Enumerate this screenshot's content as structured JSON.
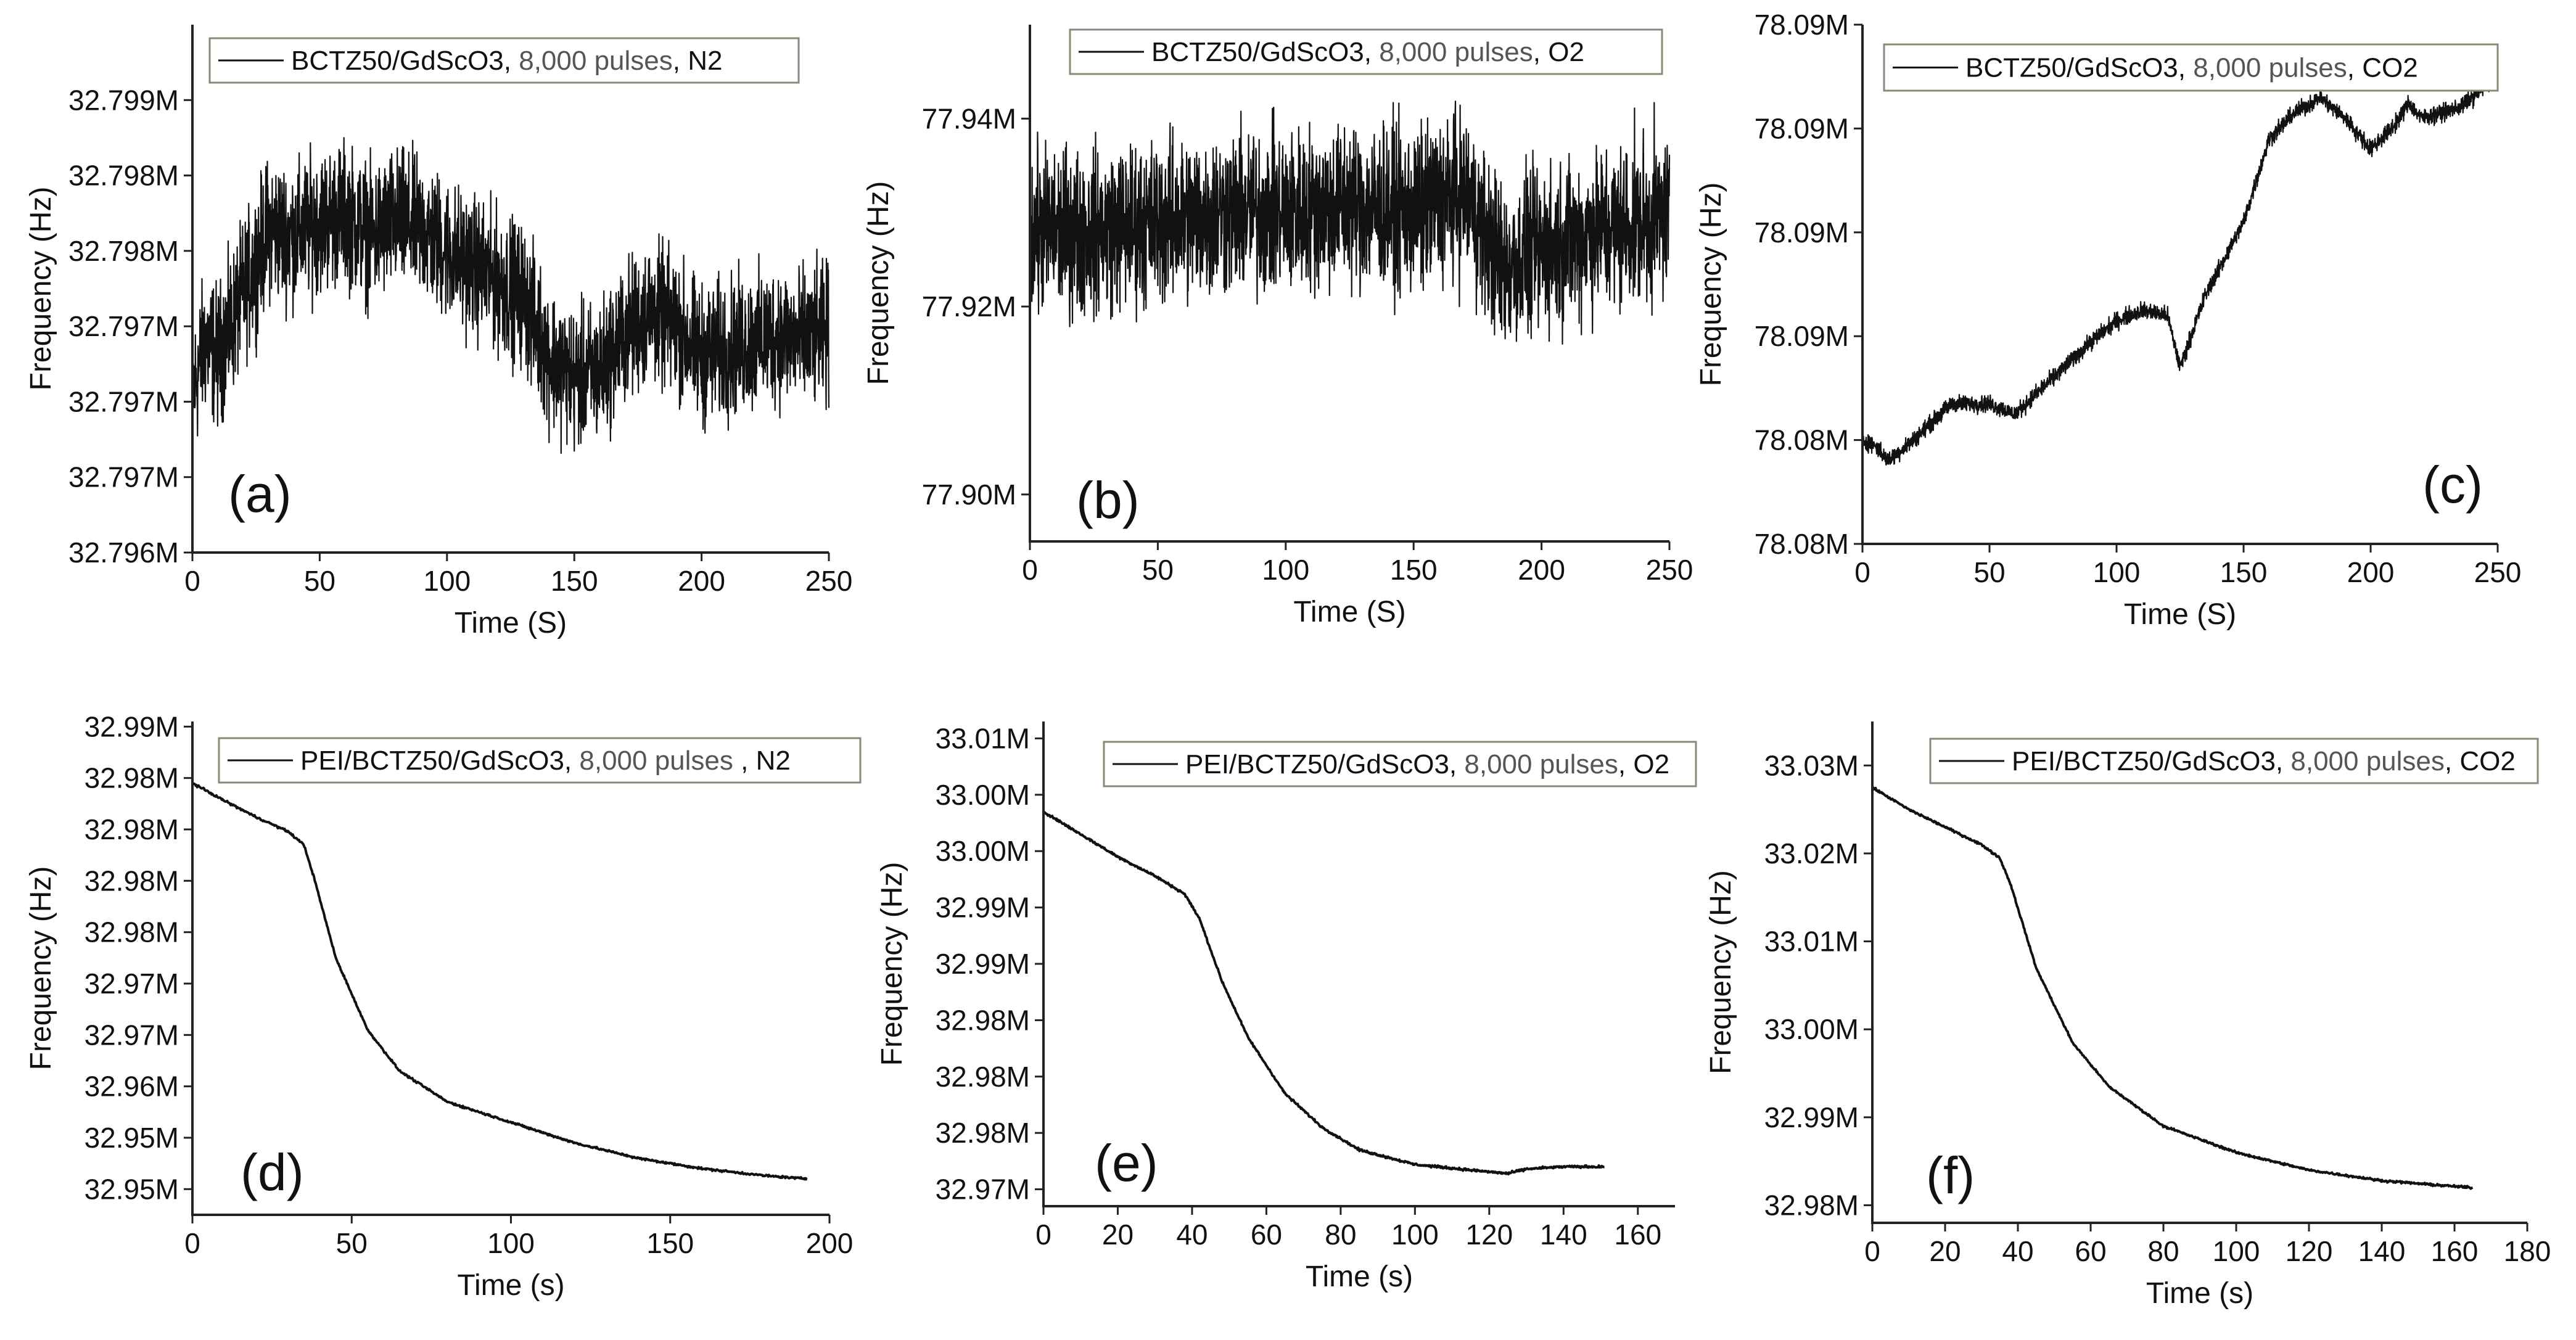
{
  "chart_data": [
    {
      "type": "line",
      "panel_label": "(a)",
      "legend": {
        "prefix": "BCTZ50/GdScO3,",
        "count": "8,000 pulses",
        "gas": ", N2",
        "placement": "top-left"
      },
      "xlabel": "Time (S)",
      "ylabel": "Frequency (Hz)",
      "xlim": [
        0,
        250
      ],
      "ylim": [
        0,
        7
      ],
      "xticks": [
        0,
        50,
        100,
        150,
        200,
        250
      ],
      "xtick_labels": [
        "0",
        "50",
        "100",
        "150",
        "200",
        "250"
      ],
      "yticks": [
        0,
        1,
        2,
        3,
        4,
        5,
        6
      ],
      "ytick_labels": [
        "32.796M",
        "32.797M",
        "32.797M",
        "32.797M",
        "32.798M",
        "32.798M",
        "32.799M"
      ],
      "series_color": "#111111",
      "noise": 0.9,
      "points": [
        [
          0,
          2.1
        ],
        [
          5,
          2.8
        ],
        [
          10,
          2.6
        ],
        [
          15,
          3.0
        ],
        [
          22,
          3.6
        ],
        [
          30,
          4.3
        ],
        [
          40,
          4.2
        ],
        [
          50,
          4.4
        ],
        [
          60,
          4.5
        ],
        [
          70,
          4.2
        ],
        [
          80,
          4.4
        ],
        [
          90,
          4.3
        ],
        [
          100,
          4.0
        ],
        [
          110,
          3.8
        ],
        [
          120,
          3.6
        ],
        [
          130,
          3.4
        ],
        [
          140,
          2.6
        ],
        [
          150,
          2.3
        ],
        [
          160,
          2.4
        ],
        [
          170,
          2.9
        ],
        [
          180,
          3.2
        ],
        [
          190,
          3.0
        ],
        [
          200,
          2.6
        ],
        [
          210,
          2.7
        ],
        [
          220,
          2.8
        ],
        [
          230,
          2.9
        ],
        [
          240,
          2.8
        ],
        [
          250,
          2.9
        ]
      ]
    },
    {
      "type": "line",
      "panel_label": "(b)",
      "legend": {
        "prefix": "BCTZ50/GdScO3,",
        "count": "8,000 pulses",
        "gas": ", O2",
        "placement": "top-right"
      },
      "xlabel": "Time (S)",
      "ylabel": "Frequency (Hz)",
      "xlim": [
        0,
        250
      ],
      "ylim": [
        77.895,
        77.95
      ],
      "xticks": [
        0,
        50,
        100,
        150,
        200,
        250
      ],
      "xtick_labels": [
        "0",
        "50",
        "100",
        "150",
        "200",
        "250"
      ],
      "yticks": [
        77.9,
        77.92,
        77.94
      ],
      "ytick_labels": [
        "77.90M",
        "77.92M",
        "77.94M"
      ],
      "series_color": "#111111",
      "noise": 0.0085,
      "points": [
        [
          0,
          77.928
        ],
        [
          25,
          77.928
        ],
        [
          50,
          77.929
        ],
        [
          75,
          77.93
        ],
        [
          100,
          77.93
        ],
        [
          125,
          77.931
        ],
        [
          150,
          77.93
        ],
        [
          170,
          77.932
        ],
        [
          185,
          77.924
        ],
        [
          200,
          77.926
        ],
        [
          220,
          77.928
        ],
        [
          240,
          77.929
        ],
        [
          250,
          77.93
        ]
      ]
    },
    {
      "type": "line",
      "panel_label": "(c)",
      "legend": {
        "prefix": "BCTZ50/GdScO3,",
        "count": "8,000 pulses",
        "gas": ", CO2",
        "placement": "top-right"
      },
      "xlabel": "Time (S)",
      "ylabel": "Frequency (Hz)",
      "xlim": [
        0,
        250
      ],
      "ylim": [
        0,
        5
      ],
      "xticks": [
        0,
        50,
        100,
        150,
        200,
        250
      ],
      "xtick_labels": [
        "0",
        "50",
        "100",
        "150",
        "200",
        "250"
      ],
      "yticks": [
        0,
        1,
        2,
        3,
        4,
        5
      ],
      "ytick_labels": [
        "78.08M",
        "78.08M",
        "78.09M",
        "78.09M",
        "78.09M",
        "78.09M"
      ],
      "series_color": "#111111",
      "noise": 0.08,
      "points": [
        [
          0,
          1.0
        ],
        [
          5,
          0.95
        ],
        [
          10,
          0.8
        ],
        [
          20,
          1.0
        ],
        [
          35,
          1.35
        ],
        [
          50,
          1.35
        ],
        [
          60,
          1.25
        ],
        [
          75,
          1.6
        ],
        [
          90,
          1.95
        ],
        [
          100,
          2.15
        ],
        [
          110,
          2.25
        ],
        [
          120,
          2.2
        ],
        [
          125,
          1.7
        ],
        [
          135,
          2.4
        ],
        [
          150,
          3.1
        ],
        [
          160,
          3.9
        ],
        [
          170,
          4.15
        ],
        [
          180,
          4.3
        ],
        [
          190,
          4.1
        ],
        [
          200,
          3.8
        ],
        [
          210,
          4.05
        ],
        [
          215,
          4.25
        ],
        [
          220,
          4.1
        ],
        [
          235,
          4.2
        ],
        [
          250,
          4.5
        ]
      ]
    },
    {
      "type": "line",
      "panel_label": "(d)",
      "legend": {
        "prefix": "PEI/BCTZ50/GdScO3,",
        "count": "8,000 pulses",
        "gas": " , N2",
        "placement": "top-right"
      },
      "xlabel": "Time (s)",
      "ylabel": "Frequency (Hz)",
      "xlim": [
        0,
        200
      ],
      "ylim": [
        32.9435,
        32.9915
      ],
      "xticks": [
        0,
        50,
        100,
        150,
        200
      ],
      "xtick_labels": [
        "0",
        "50",
        "100",
        "150",
        "200"
      ],
      "yticks": [
        32.946,
        32.951,
        32.956,
        32.961,
        32.966,
        32.971,
        32.976,
        32.981,
        32.986,
        32.991
      ],
      "ytick_labels": [
        "32.95M",
        "32.95M",
        "32.96M",
        "32.97M",
        "32.97M",
        "32.98M",
        "32.98M",
        "32.98M",
        "32.98M",
        "32.99M"
      ],
      "series_color": "#111111",
      "noise": 0.0001,
      "points": [
        [
          0,
          32.9855
        ],
        [
          10,
          32.9838
        ],
        [
          20,
          32.9822
        ],
        [
          30,
          32.9808
        ],
        [
          35,
          32.9795
        ],
        [
          38,
          32.9765
        ],
        [
          45,
          32.9685
        ],
        [
          55,
          32.9615
        ],
        [
          65,
          32.9575
        ],
        [
          80,
          32.9545
        ],
        [
          100,
          32.9525
        ],
        [
          120,
          32.9505
        ],
        [
          140,
          32.949
        ],
        [
          160,
          32.948
        ],
        [
          180,
          32.9473
        ],
        [
          193,
          32.947
        ]
      ]
    },
    {
      "type": "line",
      "panel_label": "(e)",
      "legend": {
        "prefix": "PEI/BCTZ50/GdScO3,",
        "count": "8,000 pulses",
        "gas": ", O2",
        "placement": "top-right"
      },
      "xlabel": "Time (s)",
      "ylabel": "Frequency (Hz)",
      "xlim": [
        0,
        170
      ],
      "ylim": [
        32.9685,
        33.0115
      ],
      "xticks": [
        0,
        20,
        40,
        60,
        80,
        100,
        120,
        140,
        160
      ],
      "xtick_labels": [
        "0",
        "20",
        "40",
        "60",
        "80",
        "100",
        "120",
        "140",
        "160"
      ],
      "yticks": [
        32.97,
        32.975,
        32.98,
        32.985,
        32.99,
        32.995,
        33.0,
        33.005,
        33.01
      ],
      "ytick_labels": [
        "32.97M",
        "32.98M",
        "32.98M",
        "32.98M",
        "32.99M",
        "32.99M",
        "33.00M",
        "33.00M",
        "33.01M"
      ],
      "series_color": "#111111",
      "noise": 0.0001,
      "points": [
        [
          0,
          33.0035
        ],
        [
          10,
          33.0015
        ],
        [
          20,
          32.9995
        ],
        [
          30,
          32.9978
        ],
        [
          38,
          32.9962
        ],
        [
          42,
          32.994
        ],
        [
          48,
          32.9885
        ],
        [
          55,
          32.9835
        ],
        [
          65,
          32.9785
        ],
        [
          75,
          32.9755
        ],
        [
          85,
          32.9735
        ],
        [
          100,
          32.9722
        ],
        [
          115,
          32.9717
        ],
        [
          125,
          32.9714
        ],
        [
          130,
          32.9718
        ],
        [
          140,
          32.972
        ],
        [
          151,
          32.972
        ]
      ]
    },
    {
      "type": "line",
      "panel_label": "(f)",
      "legend": {
        "prefix": "PEI/BCTZ50/GdScO3,",
        "count": "8,000 pulses",
        "gas": ", CO2",
        "placement": "top-right"
      },
      "xlabel": "Time (s)",
      "ylabel": "Frequency (Hz)",
      "xlim": [
        0,
        180
      ],
      "ylim": [
        32.978,
        33.035
      ],
      "xticks": [
        0,
        20,
        40,
        60,
        80,
        100,
        120,
        140,
        160,
        180
      ],
      "xtick_labels": [
        "0",
        "20",
        "40",
        "60",
        "80",
        "100",
        "120",
        "140",
        "160",
        "180"
      ],
      "yticks": [
        32.98,
        32.99,
        33.0,
        33.01,
        33.02,
        33.03
      ],
      "ytick_labels": [
        "32.98M",
        "32.99M",
        "33.00M",
        "33.01M",
        "33.02M",
        "33.03M"
      ],
      "series_color": "#111111",
      "noise": 0.00012,
      "points": [
        [
          0,
          33.0275
        ],
        [
          10,
          33.025
        ],
        [
          20,
          33.023
        ],
        [
          30,
          33.021
        ],
        [
          35,
          33.0195
        ],
        [
          38,
          33.0165
        ],
        [
          45,
          33.007
        ],
        [
          55,
          32.9985
        ],
        [
          65,
          32.9935
        ],
        [
          80,
          32.989
        ],
        [
          100,
          32.986
        ],
        [
          120,
          32.984
        ],
        [
          140,
          32.9828
        ],
        [
          155,
          32.9823
        ],
        [
          165,
          32.982
        ]
      ]
    }
  ]
}
